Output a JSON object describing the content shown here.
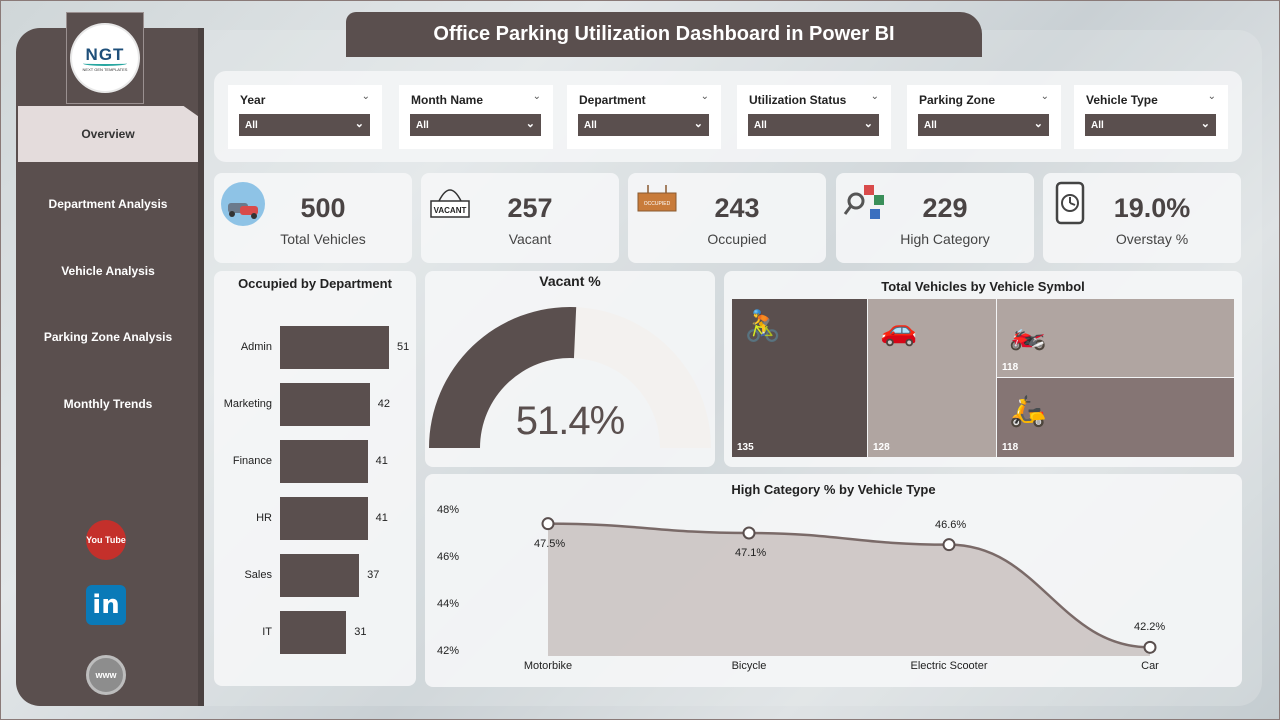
{
  "title": "Office Parking Utilization Dashboard in Power BI",
  "logo": {
    "text": "NGT",
    "sub": "NEXT GEN TEMPLATES"
  },
  "nav": [
    {
      "label": "Overview",
      "active": true
    },
    {
      "label": "Department Analysis"
    },
    {
      "label": "Vehicle Analysis"
    },
    {
      "label": "Parking Zone Analysis"
    },
    {
      "label": "Monthly Trends"
    }
  ],
  "social": {
    "youtube": "You Tube",
    "linkedin": "in",
    "web": "www"
  },
  "slicers": [
    {
      "title": "Year",
      "value": "All"
    },
    {
      "title": "Month Name",
      "value": "All"
    },
    {
      "title": "Department",
      "value": "All"
    },
    {
      "title": "Utilization Status",
      "value": "All"
    },
    {
      "title": "Parking Zone",
      "value": "All"
    },
    {
      "title": "Vehicle Type",
      "value": "All"
    }
  ],
  "kpis": [
    {
      "value": "500",
      "label": "Total Vehicles",
      "icon": "vehicles-icon"
    },
    {
      "value": "257",
      "label": "Vacant",
      "icon": "vacant-sign-icon"
    },
    {
      "value": "243",
      "label": "Occupied",
      "icon": "occupied-sign-icon"
    },
    {
      "value": "229",
      "label": "High Category",
      "icon": "category-icon"
    },
    {
      "value": "19.0%",
      "label": "Overstay %",
      "icon": "phone-clock-icon"
    }
  ],
  "icon_texts": {
    "vacant": "VACANT",
    "occupied": "OCCUPIED"
  },
  "colors": {
    "accent": "#5a4f4e",
    "accent_light": "#b0a5a1",
    "panel": "#f5f6f7"
  },
  "chart_data": [
    {
      "type": "bar",
      "title": "Occupied by Department",
      "categories": [
        "Admin",
        "Marketing",
        "Finance",
        "HR",
        "Sales",
        "IT"
      ],
      "values": [
        51,
        42,
        41,
        41,
        37,
        31
      ],
      "orientation": "horizontal"
    },
    {
      "type": "gauge",
      "title": "Vacant %",
      "value": 51.4,
      "display": "51.4%",
      "min": 0,
      "max": 100
    },
    {
      "type": "treemap",
      "title": "Total Vehicles by Vehicle Symbol",
      "items": [
        {
          "symbol": "bicycle-icon",
          "value": 135
        },
        {
          "symbol": "car-icon",
          "value": 128
        },
        {
          "symbol": "motorbike-icon",
          "value": 118
        },
        {
          "symbol": "scooter-icon",
          "value": 118
        }
      ]
    },
    {
      "type": "area",
      "title": "High Category % by Vehicle Type",
      "categories": [
        "Motorbike",
        "Bicycle",
        "Electric Scooter",
        "Car"
      ],
      "values": [
        47.5,
        47.1,
        46.6,
        42.2
      ],
      "labels": [
        "47.5%",
        "47.1%",
        "46.6%",
        "42.2%"
      ],
      "yticks": [
        "48%",
        "46%",
        "44%",
        "42%"
      ],
      "ylim": [
        42,
        48
      ]
    }
  ]
}
